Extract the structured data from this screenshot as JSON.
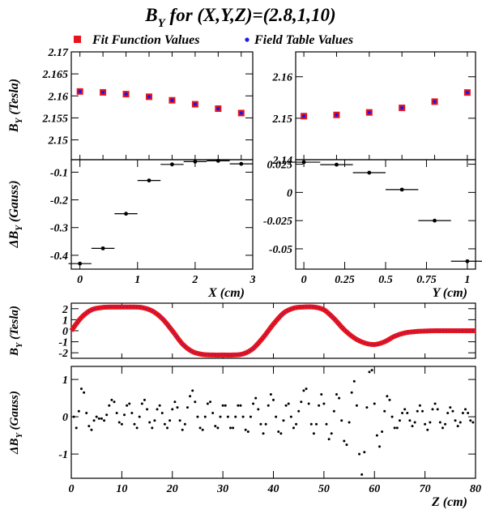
{
  "title": {
    "pre": "B",
    "sub": "Y",
    "post": " for (X,Y,Z)=(2.8,1,10)"
  },
  "legend": [
    {
      "label": "Fit Function Values",
      "color": "#e8141c",
      "marker": "square"
    },
    {
      "label": "Field Table Values",
      "color": "#1a1ae6",
      "marker": "dot"
    }
  ],
  "chart_data": [
    {
      "id": "x-by",
      "type": "scatter",
      "ylabel": {
        "pre": "B",
        "sub": "Y",
        "post": " (Tesla)"
      },
      "xlim": [
        -0.15,
        3
      ],
      "ylim": [
        2.1455,
        2.17
      ],
      "yticks": [
        "2.15",
        "2.155",
        "2.16",
        "2.165",
        "2.17"
      ],
      "x": [
        0,
        0.4,
        0.8,
        1.2,
        1.6,
        2.0,
        2.4,
        2.8
      ],
      "series": [
        {
          "name": "Fit Function Values",
          "values": [
            2.161,
            2.1608,
            2.1604,
            2.1598,
            2.159,
            2.1581,
            2.1571,
            2.1561
          ]
        },
        {
          "name": "Field Table Values",
          "values": [
            2.161,
            2.1608,
            2.1604,
            2.1598,
            2.159,
            2.1581,
            2.1571,
            2.1561
          ]
        }
      ]
    },
    {
      "id": "y-by",
      "type": "scatter",
      "xlim": [
        -0.05,
        1.05
      ],
      "ylim": [
        2.14,
        2.166
      ],
      "yticks": [
        "2.14",
        "2.15",
        "2.16"
      ],
      "x": [
        0,
        0.2,
        0.4,
        0.6,
        0.8,
        1.0
      ],
      "series": [
        {
          "name": "Fit Function Values",
          "values": [
            2.1505,
            2.1508,
            2.1514,
            2.1525,
            2.154,
            2.1562
          ]
        },
        {
          "name": "Field Table Values",
          "values": [
            2.1505,
            2.1508,
            2.1514,
            2.1525,
            2.154,
            2.1562
          ]
        }
      ]
    },
    {
      "id": "x-dby",
      "type": "scatter",
      "ylabel": {
        "pre": "ΔB",
        "sub": "Y",
        "post": " (Gauss)"
      },
      "xlabel": "X (cm)",
      "xlim": [
        -0.15,
        3
      ],
      "ylim": [
        -0.45,
        -0.055
      ],
      "xticks": [
        "0",
        "1",
        "2",
        "3"
      ],
      "yticks": [
        "-0.4",
        "-0.3",
        "-0.2",
        "-0.1"
      ],
      "x": [
        0,
        0.4,
        0.8,
        1.2,
        1.6,
        2.0,
        2.4,
        2.8
      ],
      "values": [
        -0.43,
        -0.375,
        -0.25,
        -0.13,
        -0.072,
        -0.062,
        -0.059,
        -0.07
      ],
      "xerr": 0.2
    },
    {
      "id": "y-dby",
      "type": "scatter",
      "xlabel": "Y (cm)",
      "xlim": [
        -0.05,
        1.05
      ],
      "ylim": [
        -0.068,
        0.029
      ],
      "xticks": [
        "0",
        "0.25",
        "0.5",
        "0.75",
        "1"
      ],
      "yticks": [
        "-0.05",
        "-0.025",
        "0",
        "0.025"
      ],
      "x": [
        0,
        0.2,
        0.4,
        0.6,
        0.8,
        1.0
      ],
      "values": [
        0.0268,
        0.0246,
        0.0175,
        0.0025,
        -0.025,
        -0.061
      ],
      "xerr": 0.1
    },
    {
      "id": "z-by",
      "type": "line",
      "ylabel": {
        "pre": "B",
        "sub": "Y",
        "post": " (Tesla)"
      },
      "xlim": [
        0,
        80
      ],
      "ylim": [
        -2.5,
        2.5
      ],
      "yticks": [
        "-2",
        "-1",
        "0",
        "1",
        "2"
      ],
      "x": [
        0,
        2,
        4,
        6,
        8,
        10,
        12,
        14,
        16,
        18,
        20,
        22,
        24,
        26,
        28,
        30,
        32,
        34,
        36,
        38,
        40,
        42,
        44,
        46,
        48,
        50,
        52,
        54,
        56,
        58,
        60,
        62,
        64,
        66,
        68,
        70,
        72,
        74,
        76,
        78,
        80
      ],
      "values": [
        0.0,
        1.2,
        1.9,
        2.1,
        2.15,
        2.15,
        2.15,
        2.1,
        1.8,
        1.1,
        0.0,
        -1.2,
        -1.9,
        -2.15,
        -2.2,
        -2.2,
        -2.2,
        -2.1,
        -1.6,
        -0.6,
        0.6,
        1.6,
        2.05,
        2.15,
        2.15,
        1.9,
        1.1,
        0.1,
        -0.65,
        -1.1,
        -1.25,
        -1.0,
        -0.5,
        -0.2,
        -0.08,
        -0.03,
        0.0,
        0.0,
        0.0,
        0.0,
        0.0
      ],
      "series_name": "Fit Function Values"
    },
    {
      "id": "z-dby",
      "type": "scatter",
      "ylabel": {
        "pre": "ΔB",
        "sub": "Y",
        "post": " (Gauss)"
      },
      "xlabel": "Z (cm)",
      "xlim": [
        0,
        80
      ],
      "ylim": [
        -1.65,
        1.35
      ],
      "xticks": [
        "0",
        "10",
        "20",
        "30",
        "40",
        "50",
        "60",
        "70",
        "80"
      ],
      "yticks": [
        "-1",
        "0",
        "1"
      ],
      "samples": [
        {
          "z": 0.5,
          "v": 0.0
        },
        {
          "z": 1.0,
          "v": -0.3
        },
        {
          "z": 1.5,
          "v": 0.15
        },
        {
          "z": 2.0,
          "v": 0.75
        },
        {
          "z": 2.5,
          "v": 0.65
        },
        {
          "z": 3.0,
          "v": 0.1
        },
        {
          "z": 3.5,
          "v": -0.25
        },
        {
          "z": 4.0,
          "v": -0.35
        },
        {
          "z": 4.5,
          "v": -0.1
        },
        {
          "z": 5.0,
          "v": 0.0
        },
        {
          "z": 5.5,
          "v": -0.05
        },
        {
          "z": 6.0,
          "v": -0.05
        },
        {
          "z": 6.5,
          "v": -0.1
        },
        {
          "z": 7.0,
          "v": 0.05
        },
        {
          "z": 7.5,
          "v": 0.3
        },
        {
          "z": 8.0,
          "v": 0.45
        },
        {
          "z": 8.5,
          "v": 0.4
        },
        {
          "z": 9.0,
          "v": 0.1
        },
        {
          "z": 9.5,
          "v": -0.15
        },
        {
          "z": 10.0,
          "v": -0.2
        },
        {
          "z": 10.5,
          "v": 0.05
        },
        {
          "z": 11.0,
          "v": 0.3
        },
        {
          "z": 11.5,
          "v": 0.35
        },
        {
          "z": 12.0,
          "v": 0.1
        },
        {
          "z": 12.5,
          "v": -0.2
        },
        {
          "z": 13.0,
          "v": -0.3
        },
        {
          "z": 13.5,
          "v": 0.0
        },
        {
          "z": 14.0,
          "v": 0.35
        },
        {
          "z": 14.5,
          "v": 0.45
        },
        {
          "z": 15.0,
          "v": 0.2
        },
        {
          "z": 15.5,
          "v": -0.15
        },
        {
          "z": 16.0,
          "v": -0.3
        },
        {
          "z": 16.5,
          "v": -0.1
        },
        {
          "z": 17.0,
          "v": 0.2
        },
        {
          "z": 17.5,
          "v": 0.3
        },
        {
          "z": 18.0,
          "v": 0.1
        },
        {
          "z": 18.5,
          "v": -0.2
        },
        {
          "z": 19.0,
          "v": -0.3
        },
        {
          "z": 19.5,
          "v": -0.1
        },
        {
          "z": 20.0,
          "v": 0.2
        },
        {
          "z": 20.5,
          "v": 0.4
        },
        {
          "z": 21.0,
          "v": 0.25
        },
        {
          "z": 21.5,
          "v": -0.1
        },
        {
          "z": 22.0,
          "v": -0.35
        },
        {
          "z": 22.5,
          "v": -0.2
        },
        {
          "z": 23.0,
          "v": 0.25
        },
        {
          "z": 23.5,
          "v": 0.55
        },
        {
          "z": 24.0,
          "v": 0.7
        },
        {
          "z": 24.5,
          "v": 0.4
        },
        {
          "z": 25.0,
          "v": 0.0
        },
        {
          "z": 25.5,
          "v": -0.3
        },
        {
          "z": 26.0,
          "v": -0.35
        },
        {
          "z": 26.5,
          "v": 0.0
        },
        {
          "z": 27.0,
          "v": 0.35
        },
        {
          "z": 27.5,
          "v": 0.4
        },
        {
          "z": 28.0,
          "v": 0.1
        },
        {
          "z": 28.5,
          "v": -0.25
        },
        {
          "z": 29.0,
          "v": -0.3
        },
        {
          "z": 29.5,
          "v": 0.0
        },
        {
          "z": 30.0,
          "v": 0.3
        },
        {
          "z": 30.5,
          "v": 0.3
        },
        {
          "z": 31.0,
          "v": 0.0
        },
        {
          "z": 31.5,
          "v": -0.3
        },
        {
          "z": 32.0,
          "v": -0.3
        },
        {
          "z": 32.5,
          "v": 0.0
        },
        {
          "z": 33.0,
          "v": 0.3
        },
        {
          "z": 33.5,
          "v": 0.3
        },
        {
          "z": 34.0,
          "v": 0.0
        },
        {
          "z": 34.5,
          "v": -0.35
        },
        {
          "z": 35.0,
          "v": -0.4
        },
        {
          "z": 35.5,
          "v": 0.0
        },
        {
          "z": 36.0,
          "v": 0.35
        },
        {
          "z": 36.5,
          "v": 0.5
        },
        {
          "z": 37.0,
          "v": 0.2
        },
        {
          "z": 37.5,
          "v": -0.2
        },
        {
          "z": 38.0,
          "v": -0.45
        },
        {
          "z": 38.5,
          "v": -0.2
        },
        {
          "z": 39.0,
          "v": 0.3
        },
        {
          "z": 39.5,
          "v": 0.6
        },
        {
          "z": 40.0,
          "v": 0.45
        },
        {
          "z": 40.5,
          "v": 0.0
        },
        {
          "z": 41.0,
          "v": -0.4
        },
        {
          "z": 41.5,
          "v": -0.45
        },
        {
          "z": 42.0,
          "v": -0.1
        },
        {
          "z": 42.5,
          "v": 0.3
        },
        {
          "z": 43.0,
          "v": 0.35
        },
        {
          "z": 43.5,
          "v": 0.0
        },
        {
          "z": 44.0,
          "v": -0.3
        },
        {
          "z": 44.5,
          "v": -0.2
        },
        {
          "z": 45.0,
          "v": 0.15
        },
        {
          "z": 45.5,
          "v": 0.4
        },
        {
          "z": 46.0,
          "v": 0.7
        },
        {
          "z": 46.5,
          "v": 0.75
        },
        {
          "z": 47.0,
          "v": 0.35
        },
        {
          "z": 47.5,
          "v": -0.2
        },
        {
          "z": 48.0,
          "v": -0.45
        },
        {
          "z": 48.5,
          "v": -0.2
        },
        {
          "z": 49.0,
          "v": 0.3
        },
        {
          "z": 49.5,
          "v": 0.6
        },
        {
          "z": 50.0,
          "v": 0.35
        },
        {
          "z": 50.5,
          "v": -0.2
        },
        {
          "z": 51.0,
          "v": -0.6
        },
        {
          "z": 51.5,
          "v": -0.45
        },
        {
          "z": 52.0,
          "v": 0.15
        },
        {
          "z": 52.5,
          "v": 0.6
        },
        {
          "z": 53.0,
          "v": 0.5
        },
        {
          "z": 53.5,
          "v": -0.1
        },
        {
          "z": 54.0,
          "v": -0.65
        },
        {
          "z": 54.5,
          "v": -0.75
        },
        {
          "z": 55.0,
          "v": -0.15
        },
        {
          "z": 55.5,
          "v": 0.65
        },
        {
          "z": 56.0,
          "v": 0.95
        },
        {
          "z": 56.5,
          "v": 0.3
        },
        {
          "z": 57.0,
          "v": -1.0
        },
        {
          "z": 57.5,
          "v": -1.55
        },
        {
          "z": 58.0,
          "v": -0.95
        },
        {
          "z": 58.5,
          "v": 0.25
        },
        {
          "z": 59.0,
          "v": 1.2
        },
        {
          "z": 59.5,
          "v": 1.25
        },
        {
          "z": 60.0,
          "v": 0.35
        },
        {
          "z": 60.5,
          "v": -0.5
        },
        {
          "z": 61.0,
          "v": -0.8
        },
        {
          "z": 61.5,
          "v": -0.4
        },
        {
          "z": 62.0,
          "v": 0.15
        },
        {
          "z": 62.5,
          "v": 0.55
        },
        {
          "z": 63.0,
          "v": 0.45
        },
        {
          "z": 63.5,
          "v": 0.0
        },
        {
          "z": 64.0,
          "v": -0.3
        },
        {
          "z": 64.5,
          "v": -0.3
        },
        {
          "z": 65.0,
          "v": -0.1
        },
        {
          "z": 65.5,
          "v": 0.1
        },
        {
          "z": 66.0,
          "v": 0.2
        },
        {
          "z": 66.5,
          "v": 0.1
        },
        {
          "z": 67.0,
          "v": -0.1
        },
        {
          "z": 67.5,
          "v": -0.25
        },
        {
          "z": 68.0,
          "v": -0.15
        },
        {
          "z": 68.5,
          "v": 0.15
        },
        {
          "z": 69.0,
          "v": 0.3
        },
        {
          "z": 69.5,
          "v": 0.15
        },
        {
          "z": 70.0,
          "v": -0.2
        },
        {
          "z": 70.5,
          "v": -0.35
        },
        {
          "z": 71.0,
          "v": -0.15
        },
        {
          "z": 71.5,
          "v": 0.2
        },
        {
          "z": 72.0,
          "v": 0.35
        },
        {
          "z": 72.5,
          "v": 0.2
        },
        {
          "z": 73.0,
          "v": -0.15
        },
        {
          "z": 73.5,
          "v": -0.3
        },
        {
          "z": 74.0,
          "v": -0.2
        },
        {
          "z": 74.5,
          "v": 0.1
        },
        {
          "z": 75.0,
          "v": 0.25
        },
        {
          "z": 75.5,
          "v": 0.15
        },
        {
          "z": 76.0,
          "v": -0.1
        },
        {
          "z": 76.5,
          "v": -0.25
        },
        {
          "z": 77.0,
          "v": -0.15
        },
        {
          "z": 77.5,
          "v": 0.1
        },
        {
          "z": 78.0,
          "v": 0.2
        },
        {
          "z": 78.5,
          "v": 0.1
        },
        {
          "z": 79.0,
          "v": -0.1
        },
        {
          "z": 79.5,
          "v": -0.15
        }
      ]
    }
  ]
}
